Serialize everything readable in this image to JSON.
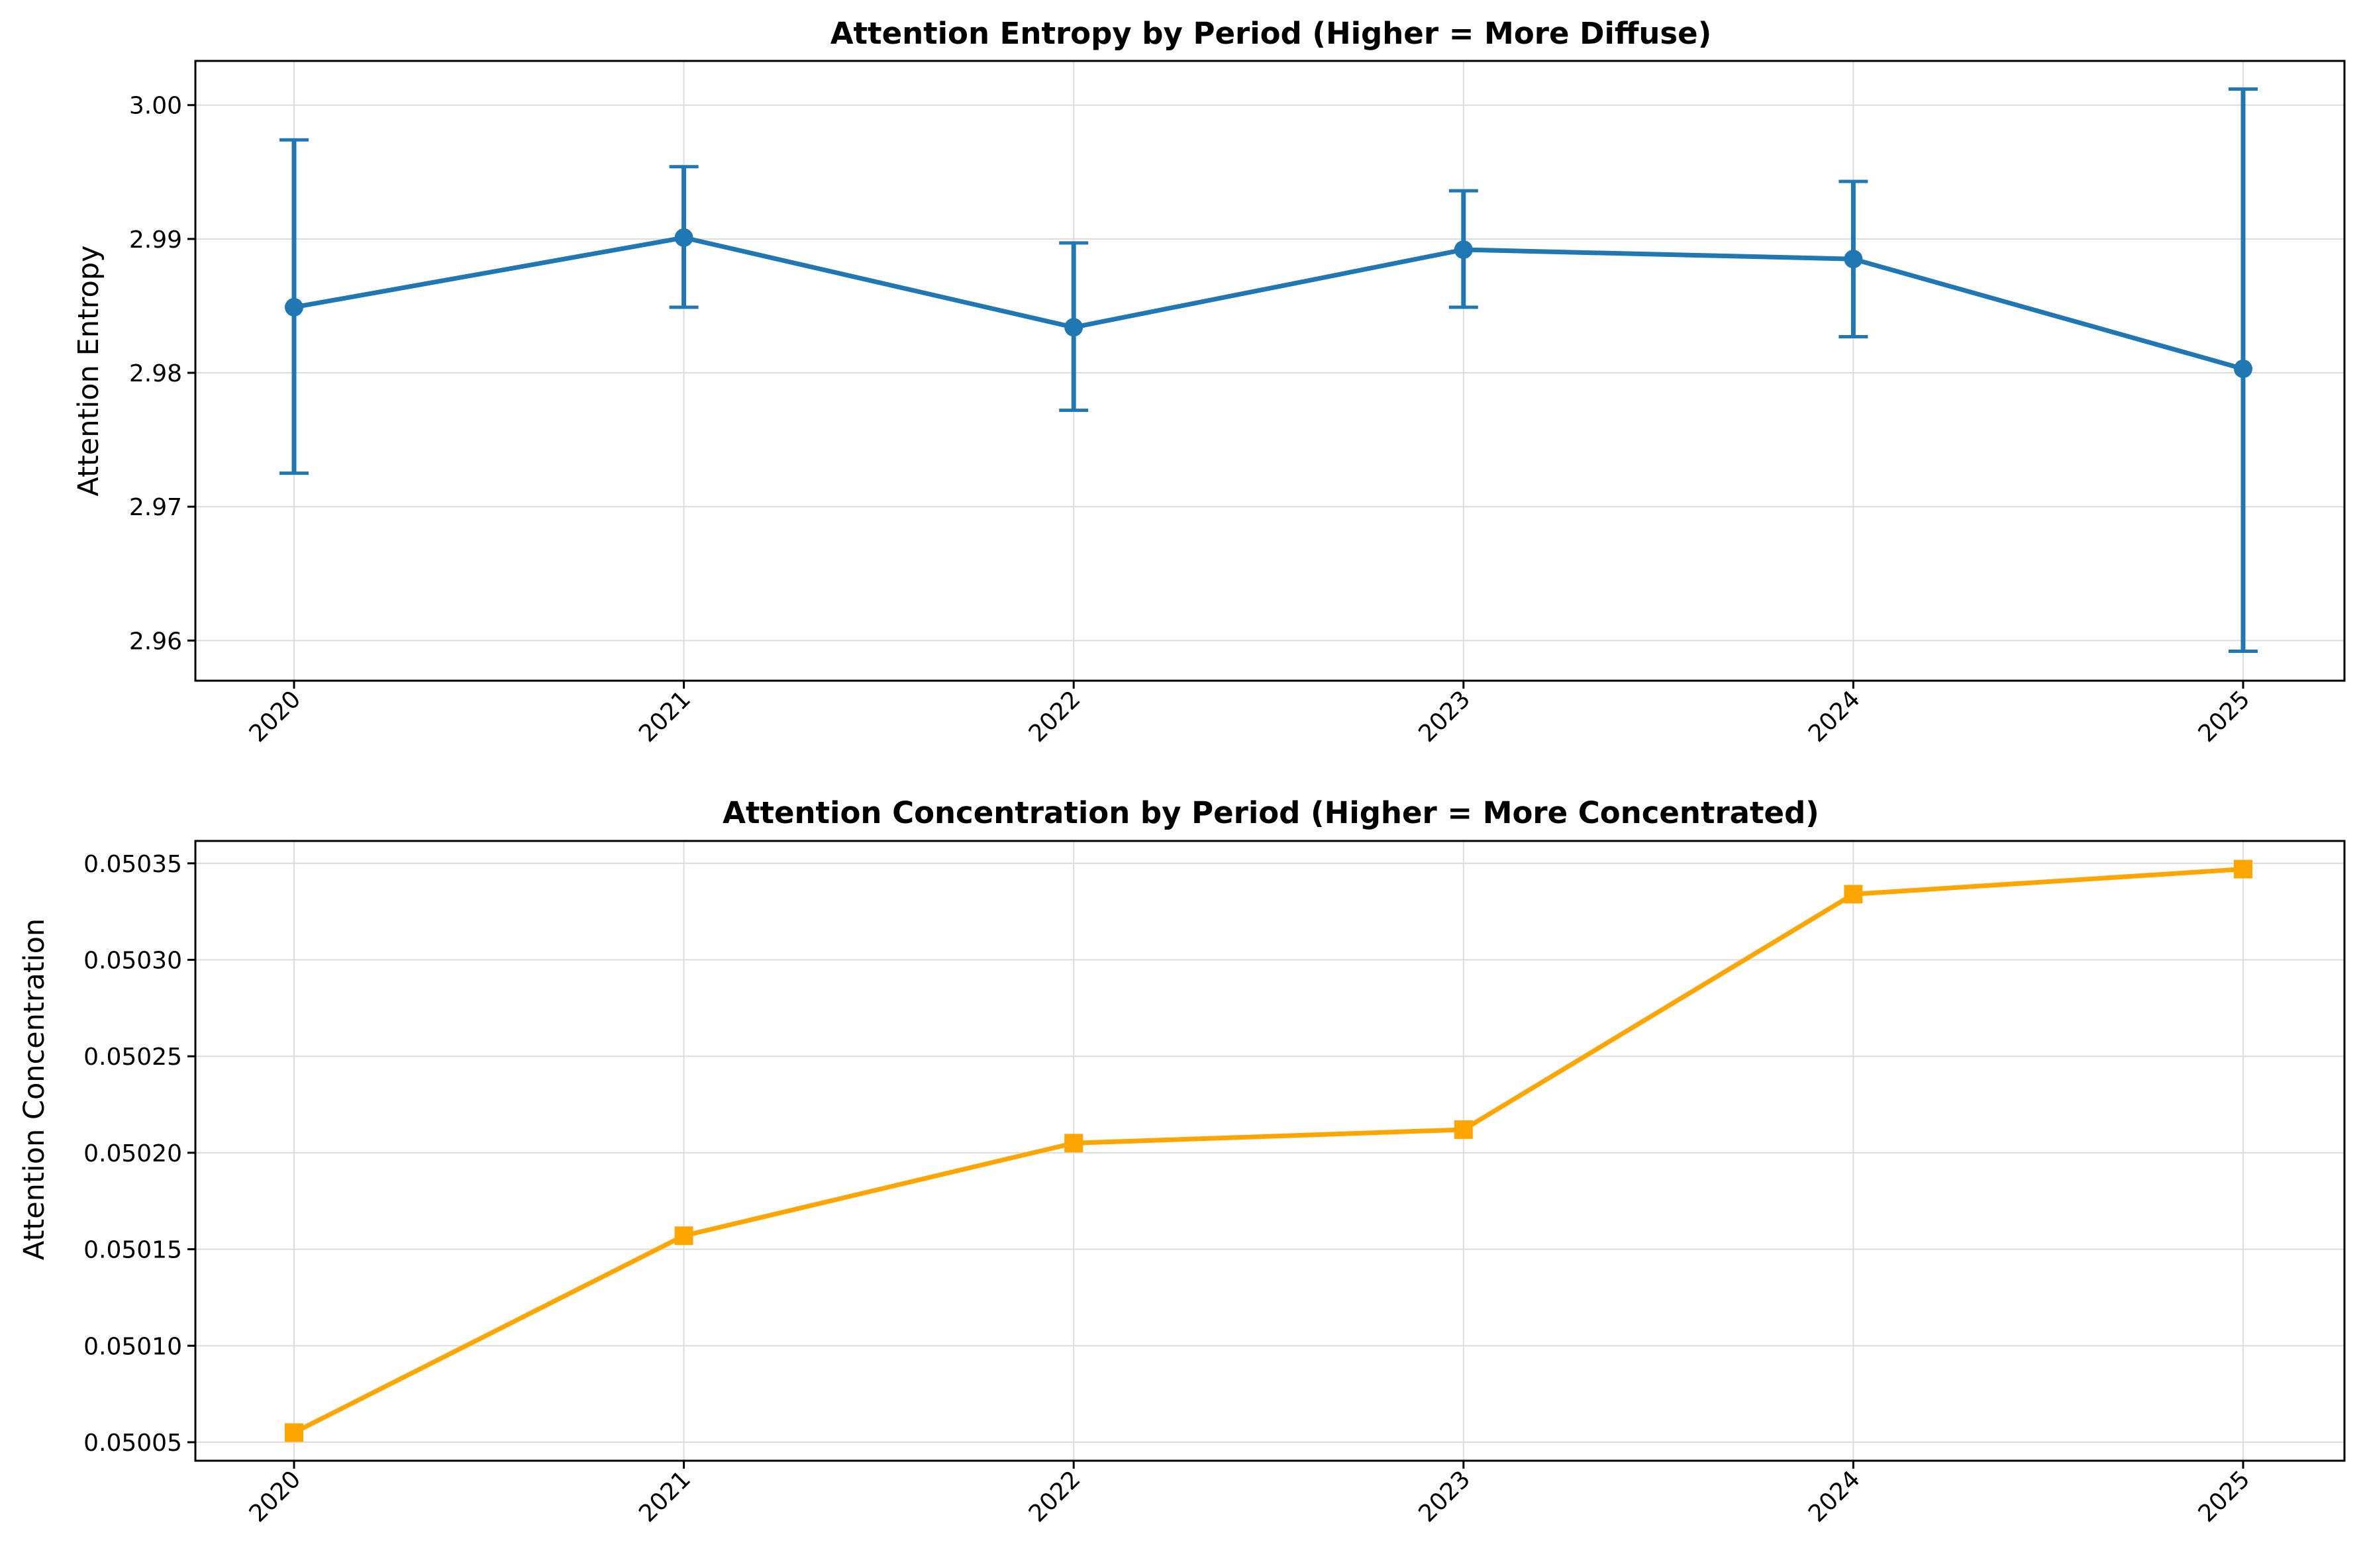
{
  "chart_data": [
    {
      "type": "line",
      "title": "Attention Entropy by Period (Higher = More Diffuse)",
      "xlabel": "",
      "ylabel": "Attention Entropy",
      "categories": [
        "2020",
        "2021",
        "2022",
        "2023",
        "2024",
        "2025"
      ],
      "series": [
        {
          "values": [
            2.9849,
            2.9901,
            2.9834,
            2.9892,
            2.9885,
            2.9803
          ],
          "error_low": [
            2.9725,
            2.9849,
            2.9772,
            2.9849,
            2.9827,
            2.9592
          ],
          "error_high": [
            2.9974,
            2.9954,
            2.9897,
            2.9936,
            2.9943,
            3.0012
          ],
          "color": "#1f77b4",
          "marker": "circle"
        }
      ],
      "yticks": [
        "2.96",
        "2.97",
        "2.98",
        "2.99",
        "3.00"
      ],
      "ylim": [
        2.957,
        3.0033
      ],
      "grid": true
    },
    {
      "type": "line",
      "title": "Attention Concentration by Period (Higher = More Concentrated)",
      "xlabel": "",
      "ylabel": "Attention Concentration",
      "categories": [
        "2020",
        "2021",
        "2022",
        "2023",
        "2024",
        "2025"
      ],
      "series": [
        {
          "values": [
            0.050055,
            0.050157,
            0.050205,
            0.050212,
            0.050334,
            0.050347
          ],
          "color": "#ffa500",
          "marker": "square"
        }
      ],
      "yticks": [
        "0.05005",
        "0.05010",
        "0.05015",
        "0.05020",
        "0.05025",
        "0.05030",
        "0.05035"
      ],
      "ylim": [
        0.0500404,
        0.0503616
      ],
      "grid": true
    }
  ]
}
